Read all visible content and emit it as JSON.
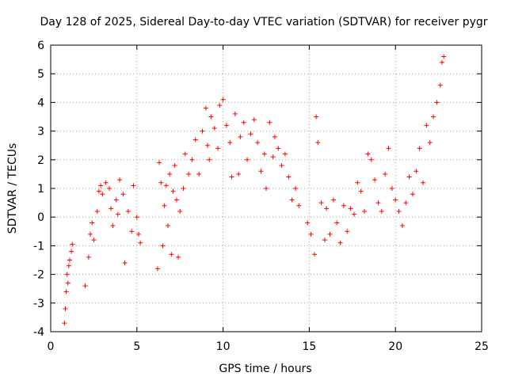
{
  "chart_data": {
    "type": "scatter",
    "title": "Day 128 of 2025, Sidereal Day-to-day VTEC variation (SDTVAR) for receiver pygr",
    "xlabel": "GPS time / hours",
    "ylabel": "SDTVAR / TECUs",
    "xlim": [
      0,
      25
    ],
    "ylim": [
      -4,
      6
    ],
    "xticks": [
      0,
      5,
      10,
      15,
      20,
      25
    ],
    "yticks": [
      -4,
      -3,
      -2,
      -1,
      0,
      1,
      2,
      3,
      4,
      5,
      6
    ],
    "grid": true,
    "marker": "+",
    "color": "#ff0000",
    "series": [
      {
        "name": "SDTVAR",
        "points": [
          [
            0.8,
            -3.7
          ],
          [
            0.85,
            -3.2
          ],
          [
            0.9,
            -2.6
          ],
          [
            0.95,
            -2.0
          ],
          [
            1.0,
            -2.3
          ],
          [
            1.05,
            -1.7
          ],
          [
            1.1,
            -1.5
          ],
          [
            1.2,
            -1.2
          ],
          [
            1.25,
            -0.95
          ],
          [
            2.0,
            -2.4
          ],
          [
            2.2,
            -1.4
          ],
          [
            2.3,
            -0.6
          ],
          [
            2.4,
            -0.2
          ],
          [
            2.5,
            -0.8
          ],
          [
            2.7,
            0.2
          ],
          [
            2.8,
            0.9
          ],
          [
            2.9,
            1.1
          ],
          [
            3.0,
            0.8
          ],
          [
            3.2,
            1.2
          ],
          [
            3.4,
            1.0
          ],
          [
            3.5,
            0.3
          ],
          [
            3.6,
            -0.3
          ],
          [
            3.8,
            0.6
          ],
          [
            3.9,
            0.1
          ],
          [
            4.0,
            1.3
          ],
          [
            4.2,
            0.8
          ],
          [
            4.3,
            -1.6
          ],
          [
            4.5,
            0.2
          ],
          [
            4.7,
            -0.5
          ],
          [
            4.8,
            1.1
          ],
          [
            5.0,
            0.0
          ],
          [
            5.1,
            -0.6
          ],
          [
            5.2,
            -0.9
          ],
          [
            6.2,
            -1.8
          ],
          [
            6.3,
            1.9
          ],
          [
            6.4,
            1.2
          ],
          [
            6.5,
            -1.0
          ],
          [
            6.6,
            0.4
          ],
          [
            6.7,
            1.1
          ],
          [
            6.8,
            -0.3
          ],
          [
            6.9,
            1.5
          ],
          [
            7.0,
            -1.3
          ],
          [
            7.1,
            0.9
          ],
          [
            7.2,
            1.8
          ],
          [
            7.3,
            0.6
          ],
          [
            7.4,
            -1.4
          ],
          [
            7.5,
            0.2
          ],
          [
            7.7,
            1.0
          ],
          [
            7.8,
            2.2
          ],
          [
            8.0,
            1.5
          ],
          [
            8.2,
            2.0
          ],
          [
            8.4,
            2.7
          ],
          [
            8.6,
            1.5
          ],
          [
            8.8,
            3.0
          ],
          [
            9.0,
            3.8
          ],
          [
            9.1,
            2.5
          ],
          [
            9.2,
            2.0
          ],
          [
            9.3,
            3.5
          ],
          [
            9.5,
            3.1
          ],
          [
            9.7,
            2.4
          ],
          [
            9.8,
            3.9
          ],
          [
            10.0,
            4.1
          ],
          [
            10.2,
            3.2
          ],
          [
            10.4,
            2.6
          ],
          [
            10.5,
            1.4
          ],
          [
            10.7,
            3.6
          ],
          [
            10.9,
            1.5
          ],
          [
            11.0,
            2.8
          ],
          [
            11.2,
            3.3
          ],
          [
            11.4,
            2.0
          ],
          [
            11.6,
            2.9
          ],
          [
            11.8,
            3.4
          ],
          [
            12.0,
            2.6
          ],
          [
            12.2,
            1.6
          ],
          [
            12.4,
            2.2
          ],
          [
            12.5,
            1.0
          ],
          [
            12.7,
            3.3
          ],
          [
            12.9,
            2.1
          ],
          [
            13.0,
            2.8
          ],
          [
            13.2,
            2.4
          ],
          [
            13.4,
            1.8
          ],
          [
            13.6,
            2.2
          ],
          [
            13.8,
            1.4
          ],
          [
            14.0,
            0.6
          ],
          [
            14.2,
            1.0
          ],
          [
            14.4,
            0.4
          ],
          [
            14.9,
            -0.2
          ],
          [
            15.1,
            -0.6
          ],
          [
            15.3,
            -1.3
          ],
          [
            15.4,
            3.5
          ],
          [
            15.5,
            2.6
          ],
          [
            15.7,
            0.5
          ],
          [
            15.9,
            -0.8
          ],
          [
            16.0,
            0.3
          ],
          [
            16.2,
            -0.6
          ],
          [
            16.4,
            0.6
          ],
          [
            16.6,
            -0.2
          ],
          [
            16.8,
            -0.9
          ],
          [
            17.0,
            0.4
          ],
          [
            17.2,
            -0.5
          ],
          [
            17.4,
            0.3
          ],
          [
            17.6,
            0.1
          ],
          [
            17.8,
            1.2
          ],
          [
            18.0,
            0.9
          ],
          [
            18.2,
            0.2
          ],
          [
            18.4,
            2.2
          ],
          [
            18.6,
            2.0
          ],
          [
            18.8,
            1.3
          ],
          [
            19.0,
            0.5
          ],
          [
            19.2,
            0.2
          ],
          [
            19.4,
            1.5
          ],
          [
            19.6,
            2.4
          ],
          [
            19.8,
            1.0
          ],
          [
            20.0,
            0.6
          ],
          [
            20.2,
            0.2
          ],
          [
            20.4,
            -0.3
          ],
          [
            20.6,
            0.5
          ],
          [
            20.8,
            1.4
          ],
          [
            21.0,
            0.8
          ],
          [
            21.2,
            1.6
          ],
          [
            21.4,
            2.4
          ],
          [
            21.6,
            1.2
          ],
          [
            21.8,
            3.2
          ],
          [
            22.0,
            2.6
          ],
          [
            22.2,
            3.5
          ],
          [
            22.4,
            4.0
          ],
          [
            22.6,
            4.6
          ],
          [
            22.7,
            5.4
          ],
          [
            22.8,
            5.6
          ]
        ]
      }
    ]
  }
}
